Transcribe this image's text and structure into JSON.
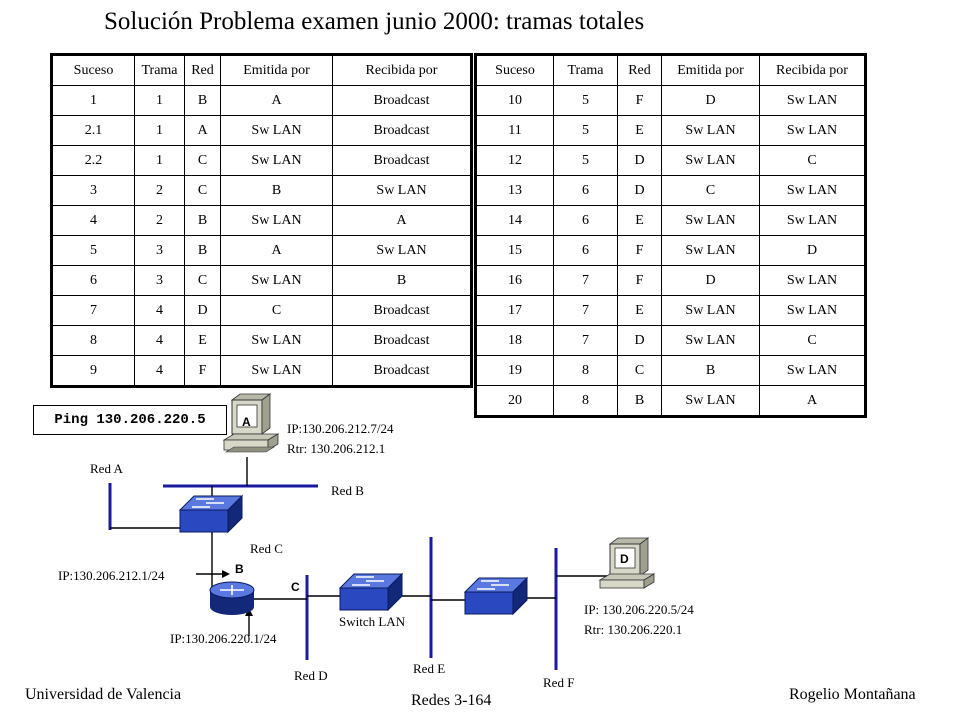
{
  "title": "Solución Problema examen junio 2000: tramas totales",
  "table_headers": [
    "Suceso",
    "Trama",
    "Red",
    "Emitida por",
    "Recibida por"
  ],
  "table_left": [
    [
      "1",
      "1",
      "B",
      "A",
      "Broadcast"
    ],
    [
      "2.1",
      "1",
      "A",
      "Sw LAN",
      "Broadcast"
    ],
    [
      "2.2",
      "1",
      "C",
      "Sw LAN",
      "Broadcast"
    ],
    [
      "3",
      "2",
      "C",
      "B",
      "Sw LAN"
    ],
    [
      "4",
      "2",
      "B",
      "Sw LAN",
      "A"
    ],
    [
      "5",
      "3",
      "B",
      "A",
      "Sw LAN"
    ],
    [
      "6",
      "3",
      "C",
      "Sw LAN",
      "B"
    ],
    [
      "7",
      "4",
      "D",
      "C",
      "Broadcast"
    ],
    [
      "8",
      "4",
      "E",
      "Sw LAN",
      "Broadcast"
    ],
    [
      "9",
      "4",
      "F",
      "Sw LAN",
      "Broadcast"
    ]
  ],
  "table_right": [
    [
      "10",
      "5",
      "F",
      "D",
      "Sw LAN"
    ],
    [
      "11",
      "5",
      "E",
      "Sw LAN",
      "Sw LAN"
    ],
    [
      "12",
      "5",
      "D",
      "Sw LAN",
      "C"
    ],
    [
      "13",
      "6",
      "D",
      "C",
      "Sw LAN"
    ],
    [
      "14",
      "6",
      "E",
      "Sw LAN",
      "Sw LAN"
    ],
    [
      "15",
      "6",
      "F",
      "Sw LAN",
      "D"
    ],
    [
      "16",
      "7",
      "F",
      "D",
      "Sw LAN"
    ],
    [
      "17",
      "7",
      "E",
      "Sw LAN",
      "Sw LAN"
    ],
    [
      "18",
      "7",
      "D",
      "Sw LAN",
      "C"
    ],
    [
      "19",
      "8",
      "C",
      "B",
      "Sw LAN"
    ],
    [
      "20",
      "8",
      "B",
      "Sw LAN",
      "A"
    ]
  ],
  "diagram": {
    "ping_command": "Ping 130.206.220.5",
    "host_a": {
      "letter": "A",
      "ip": "IP:130.206.212.7/24",
      "rtr": "Rtr: 130.206.212.1"
    },
    "host_d": {
      "letter": "D",
      "ip": "IP: 130.206.220.5/24",
      "rtr": "Rtr: 130.206.220.1"
    },
    "router": {
      "iface_b_label": "B",
      "iface_c_label": "C",
      "ip_b": "IP:130.206.212.1/24",
      "ip_c": "IP:130.206.220.1/24"
    },
    "switch_lan_label": "Switch LAN",
    "networks": {
      "red_a": "Red A",
      "red_b": "Red B",
      "red_c": "Red C",
      "red_d": "Red D",
      "red_e": "Red E",
      "red_f": "Red F"
    }
  },
  "footer": {
    "left": "Universidad de Valencia",
    "center": "Redes 3-164",
    "right": "Rogelio Montañana"
  },
  "colors": {
    "network_line": "#1a1aa0",
    "device": "#2a48c0",
    "device_dark": "#14287a",
    "host_screen": "#d8d8c8"
  }
}
